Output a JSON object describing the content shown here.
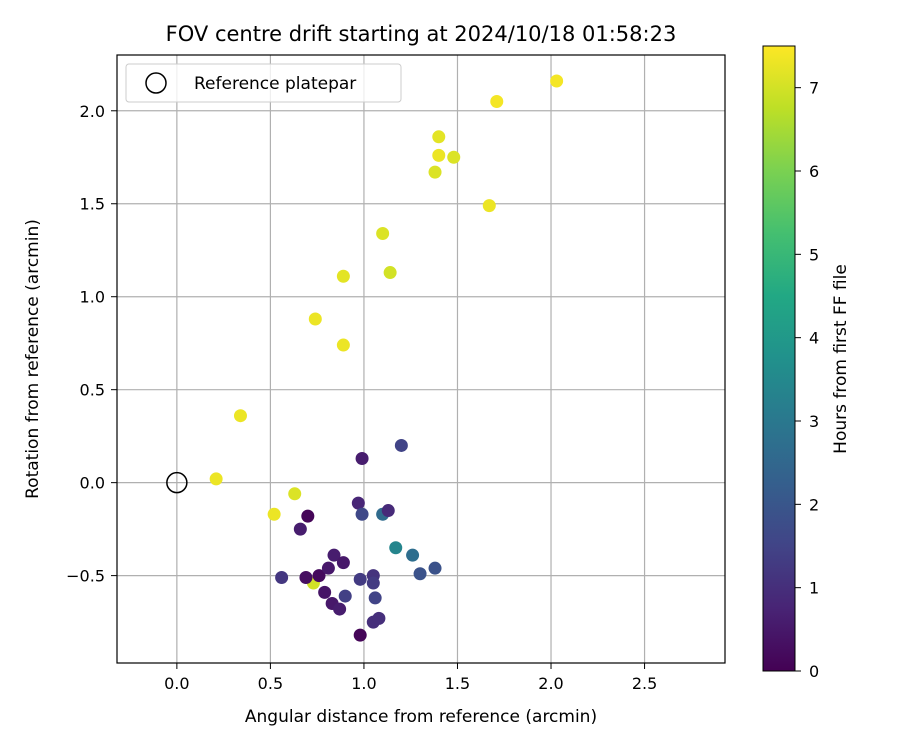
{
  "chart_data": {
    "type": "scatter",
    "title": "FOV centre drift starting at 2024/10/18 01:58:23",
    "xlabel": "Angular distance from reference (arcmin)",
    "ylabel": "Rotation from reference (arcmin)",
    "xlim": [
      -0.32,
      2.93
    ],
    "ylim": [
      -0.97,
      2.3
    ],
    "xticks": [
      "0.0",
      "0.5",
      "1.0",
      "1.5",
      "2.0",
      "2.5"
    ],
    "xtick_values": [
      0,
      0.5,
      1.0,
      1.5,
      2.0,
      2.5
    ],
    "yticks": [
      "−0.5",
      "0.0",
      "0.5",
      "1.0",
      "1.5",
      "2.0"
    ],
    "ytick_values": [
      -0.5,
      0,
      0.5,
      1.0,
      1.5,
      2.0
    ],
    "grid": true,
    "legend": {
      "placement": "upper-left",
      "label": "Reference platepar"
    },
    "reference_point": {
      "x": 0.0,
      "y": 0.0
    },
    "colorbar": {
      "label": "Hours from first FF file",
      "range": [
        0,
        7.5
      ],
      "ticks": [
        "0",
        "1",
        "2",
        "3",
        "4",
        "5",
        "6",
        "7"
      ],
      "tick_values": [
        0,
        1,
        2,
        3,
        4,
        5,
        6,
        7
      ],
      "colormap": "viridis"
    },
    "points": [
      {
        "x": 0.21,
        "y": 0.02,
        "h": 7.3
      },
      {
        "x": 0.34,
        "y": 0.36,
        "h": 7.3
      },
      {
        "x": 0.52,
        "y": -0.17,
        "h": 7.3
      },
      {
        "x": 0.63,
        "y": -0.06,
        "h": 7.1
      },
      {
        "x": 0.74,
        "y": 0.88,
        "h": 7.3
      },
      {
        "x": 0.89,
        "y": 0.74,
        "h": 7.3
      },
      {
        "x": 0.89,
        "y": 1.11,
        "h": 7.2
      },
      {
        "x": 1.1,
        "y": 1.34,
        "h": 7.1
      },
      {
        "x": 1.14,
        "y": 1.13,
        "h": 7.0
      },
      {
        "x": 1.38,
        "y": 1.67,
        "h": 7.1
      },
      {
        "x": 1.4,
        "y": 1.86,
        "h": 7.2
      },
      {
        "x": 1.4,
        "y": 1.76,
        "h": 7.3
      },
      {
        "x": 1.48,
        "y": 1.75,
        "h": 7.1
      },
      {
        "x": 1.67,
        "y": 1.49,
        "h": 7.3
      },
      {
        "x": 1.71,
        "y": 2.05,
        "h": 7.4
      },
      {
        "x": 2.03,
        "y": 2.16,
        "h": 7.4
      },
      {
        "x": 0.73,
        "y": -0.54,
        "h": 7.0
      },
      {
        "x": 0.56,
        "y": -0.51,
        "h": 1.2
      },
      {
        "x": 0.66,
        "y": -0.25,
        "h": 0.6
      },
      {
        "x": 0.7,
        "y": -0.18,
        "h": 0.1
      },
      {
        "x": 0.69,
        "y": -0.51,
        "h": 0.3
      },
      {
        "x": 0.76,
        "y": -0.5,
        "h": 0.2
      },
      {
        "x": 0.79,
        "y": -0.59,
        "h": 0.4
      },
      {
        "x": 0.81,
        "y": -0.46,
        "h": 0.5
      },
      {
        "x": 0.83,
        "y": -0.65,
        "h": 0.5
      },
      {
        "x": 0.84,
        "y": -0.39,
        "h": 0.6
      },
      {
        "x": 0.87,
        "y": -0.68,
        "h": 0.6
      },
      {
        "x": 0.89,
        "y": -0.43,
        "h": 0.5
      },
      {
        "x": 0.9,
        "y": -0.61,
        "h": 1.4
      },
      {
        "x": 0.97,
        "y": -0.11,
        "h": 0.8
      },
      {
        "x": 0.99,
        "y": -0.17,
        "h": 1.6
      },
      {
        "x": 0.98,
        "y": -0.52,
        "h": 1.3
      },
      {
        "x": 0.98,
        "y": -0.82,
        "h": 0.1
      },
      {
        "x": 0.99,
        "y": 0.13,
        "h": 0.6
      },
      {
        "x": 1.05,
        "y": -0.5,
        "h": 1.1
      },
      {
        "x": 1.05,
        "y": -0.54,
        "h": 1.3
      },
      {
        "x": 1.05,
        "y": -0.75,
        "h": 1.0
      },
      {
        "x": 1.06,
        "y": -0.62,
        "h": 1.5
      },
      {
        "x": 1.08,
        "y": -0.73,
        "h": 1.0
      },
      {
        "x": 1.1,
        "y": -0.17,
        "h": 2.6
      },
      {
        "x": 1.13,
        "y": -0.15,
        "h": 0.9
      },
      {
        "x": 1.17,
        "y": -0.35,
        "h": 3.4
      },
      {
        "x": 1.2,
        "y": 0.2,
        "h": 1.5
      },
      {
        "x": 1.26,
        "y": -0.39,
        "h": 2.7
      },
      {
        "x": 1.3,
        "y": -0.49,
        "h": 1.9
      },
      {
        "x": 1.38,
        "y": -0.46,
        "h": 1.9
      }
    ]
  }
}
